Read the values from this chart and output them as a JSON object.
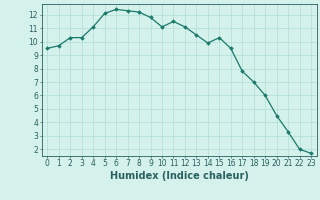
{
  "x": [
    0,
    1,
    2,
    3,
    4,
    5,
    6,
    7,
    8,
    9,
    10,
    11,
    12,
    13,
    14,
    15,
    16,
    17,
    18,
    19,
    20,
    21,
    22,
    23
  ],
  "y": [
    9.5,
    9.7,
    10.3,
    10.3,
    11.1,
    12.1,
    12.4,
    12.3,
    12.2,
    11.8,
    11.1,
    11.5,
    11.1,
    10.5,
    9.9,
    10.3,
    9.5,
    7.8,
    7.0,
    6.0,
    4.5,
    3.3,
    2.0,
    1.7
  ],
  "xlabel": "Humidex (Indice chaleur)",
  "ylim": [
    1.5,
    12.8
  ],
  "xlim": [
    -0.5,
    23.5
  ],
  "yticks": [
    2,
    3,
    4,
    5,
    6,
    7,
    8,
    9,
    10,
    11,
    12
  ],
  "xticks": [
    0,
    1,
    2,
    3,
    4,
    5,
    6,
    7,
    8,
    9,
    10,
    11,
    12,
    13,
    14,
    15,
    16,
    17,
    18,
    19,
    20,
    21,
    22,
    23
  ],
  "line_color": "#1a7a6a",
  "marker": "D",
  "marker_size": 1.8,
  "bg_color": "#d4f1ec",
  "grid_color": "#b0ddd5",
  "axes_color": "#2a6060",
  "xlabel_fontsize": 7.0,
  "tick_fontsize": 5.5,
  "linewidth": 0.9
}
